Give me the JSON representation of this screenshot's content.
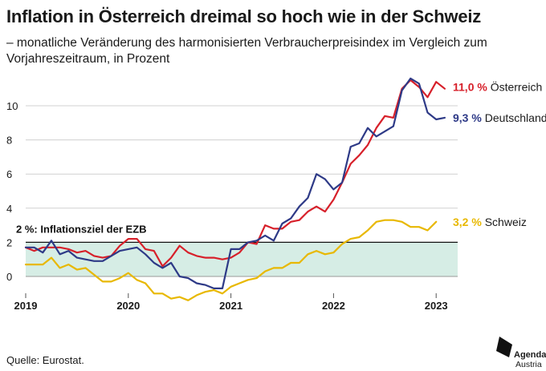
{
  "header": {
    "title": "Inflation in Österreich dreimal so hoch wie in der Schweiz",
    "subtitle": "– monatliche Veränderung des harmonisierten Verbraucherpreisindex im Vergleich zum Vorjahreszeitraum, in Prozent"
  },
  "footer": {
    "source": "Quelle: Eurostat.",
    "logo_line1": "Agenda",
    "logo_line2": "Austria"
  },
  "chart_data": {
    "type": "line",
    "x_tick_labels": [
      "2019",
      "2020",
      "2021",
      "2022",
      "2023"
    ],
    "y_tick_labels": [
      "0",
      "2",
      "4",
      "6",
      "8",
      "10"
    ],
    "ylim": [
      -1.5,
      12
    ],
    "grid": true,
    "band": {
      "from": 0,
      "to": 2,
      "label": "2 %: Inflationsziel der EZB",
      "color": "#d6ede5"
    },
    "x_start": "2019-01",
    "series": [
      {
        "name": "Österreich",
        "end_label": "11,0 %",
        "color": "#d7202a",
        "values": [
          1.7,
          1.5,
          1.7,
          1.7,
          1.7,
          1.6,
          1.4,
          1.5,
          1.2,
          1.1,
          1.2,
          1.8,
          2.2,
          2.2,
          1.6,
          1.5,
          0.6,
          1.1,
          1.8,
          1.4,
          1.2,
          1.1,
          1.1,
          1.0,
          1.1,
          1.4,
          2.0,
          1.9,
          3.0,
          2.8,
          2.8,
          3.2,
          3.3,
          3.8,
          4.1,
          3.8,
          4.5,
          5.5,
          6.6,
          7.1,
          7.7,
          8.7,
          9.4,
          9.3,
          11.0,
          11.5,
          11.1,
          10.5,
          11.4,
          11.0
        ]
      },
      {
        "name": "Deutschland",
        "end_label": "9,3 %",
        "color": "#2e3a87",
        "values": [
          1.7,
          1.7,
          1.4,
          2.1,
          1.3,
          1.5,
          1.1,
          1.0,
          0.9,
          0.9,
          1.2,
          1.5,
          1.6,
          1.7,
          1.3,
          0.8,
          0.5,
          0.8,
          0.0,
          -0.1,
          -0.4,
          -0.5,
          -0.7,
          -0.7,
          1.6,
          1.6,
          2.0,
          2.1,
          2.4,
          2.1,
          3.1,
          3.4,
          4.1,
          4.6,
          6.0,
          5.7,
          5.1,
          5.5,
          7.6,
          7.8,
          8.7,
          8.2,
          8.5,
          8.8,
          10.9,
          11.6,
          11.3,
          9.6,
          9.2,
          9.3
        ]
      },
      {
        "name": "Schweiz",
        "end_label": "3,2 %",
        "color": "#e8b800",
        "values": [
          0.7,
          0.7,
          0.7,
          1.1,
          0.5,
          0.7,
          0.4,
          0.5,
          0.1,
          -0.3,
          -0.3,
          -0.1,
          0.2,
          -0.2,
          -0.4,
          -1.0,
          -1.0,
          -1.3,
          -1.2,
          -1.4,
          -1.1,
          -0.9,
          -0.8,
          -1.0,
          -0.6,
          -0.4,
          -0.2,
          -0.1,
          0.3,
          0.5,
          0.5,
          0.8,
          0.8,
          1.3,
          1.5,
          1.3,
          1.4,
          1.9,
          2.2,
          2.3,
          2.7,
          3.2,
          3.3,
          3.3,
          3.2,
          2.9,
          2.9,
          2.7,
          3.2
        ]
      }
    ]
  }
}
